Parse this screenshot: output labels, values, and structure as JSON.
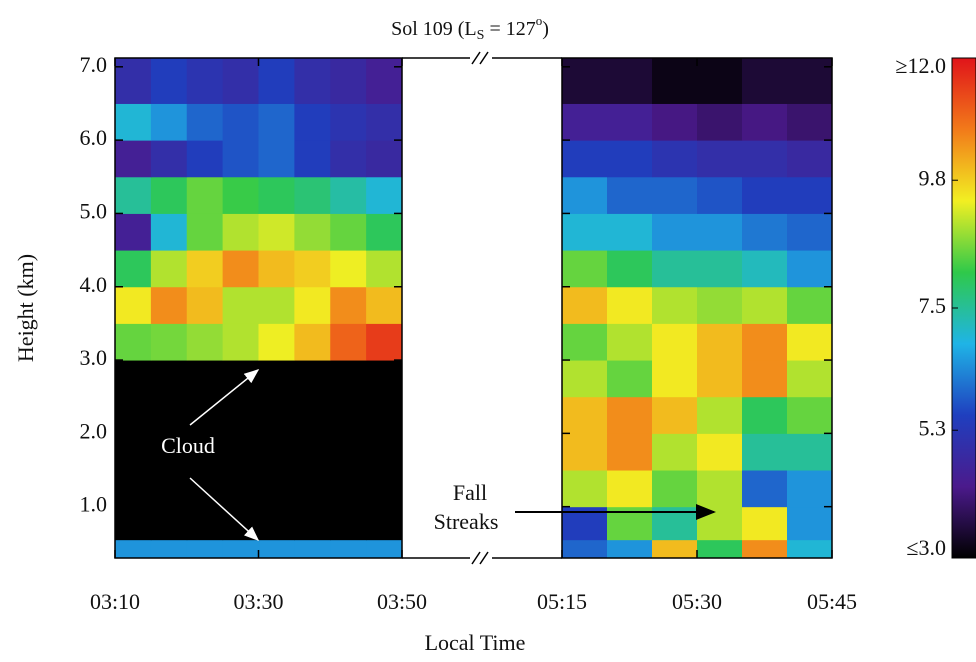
{
  "chart_data": {
    "type": "heatmap",
    "title_parts": [
      "Sol 109 (L",
      "S",
      " = 127",
      "o",
      ")"
    ],
    "xlabel": "Local Time",
    "ylabel": "Height (km)",
    "ylim": [
      0.3,
      7.12
    ],
    "yticks": [
      {
        "value": 1,
        "label": "1.0"
      },
      {
        "value": 2,
        "label": "2.0"
      },
      {
        "value": 3,
        "label": "3.0"
      },
      {
        "value": 4,
        "label": "4.0"
      },
      {
        "value": 5,
        "label": "5.0"
      },
      {
        "value": 6,
        "label": "6.0"
      },
      {
        "value": 7,
        "label": "7.0"
      }
    ],
    "ybins": [
      0.3,
      0.55,
      1.0,
      1.5,
      2.0,
      2.5,
      3.0,
      3.5,
      4.0,
      4.5,
      5.0,
      5.5,
      6.0,
      6.5,
      7.12
    ],
    "panels": [
      {
        "xlim": [
          190,
          230
        ],
        "xbins": [
          190,
          195,
          200,
          205,
          210,
          215,
          220,
          225,
          230
        ],
        "xticks": [
          {
            "value": 190,
            "label": "03:10"
          },
          {
            "value": 210,
            "label": "03:30"
          },
          {
            "value": 230,
            "label": "03:50"
          }
        ],
        "z": [
          [
            6.5,
            6.5,
            6.5,
            6.5,
            6.5,
            6.5,
            6.5,
            6.5
          ],
          [
            3,
            3,
            3,
            3,
            3,
            3,
            3,
            3
          ],
          [
            3,
            3,
            3,
            3,
            3,
            3,
            3,
            3
          ],
          [
            3,
            3,
            3,
            3,
            3,
            3,
            3,
            3
          ],
          [
            3,
            3,
            3,
            3,
            3,
            3,
            3,
            3
          ],
          [
            3,
            3,
            3,
            3,
            3,
            3,
            3,
            3
          ],
          [
            8.5,
            8.6,
            8.8,
            9,
            9.4,
            10,
            11,
            11.5
          ],
          [
            9.5,
            10.5,
            10,
            9,
            9,
            9.5,
            10.5,
            10
          ],
          [
            8,
            9,
            9.8,
            10.5,
            10,
            9.8,
            9.4,
            9
          ],
          [
            4.5,
            7,
            8.5,
            9,
            9.2,
            8.8,
            8.5,
            8
          ],
          [
            7.5,
            8,
            8.5,
            8.2,
            8,
            7.8,
            7.4,
            7
          ],
          [
            4.5,
            5,
            5.5,
            5.8,
            6,
            5.5,
            5,
            4.8
          ],
          [
            7,
            6.5,
            6,
            5.8,
            6,
            5.5,
            5.2,
            5
          ],
          [
            5,
            5.5,
            5.2,
            5,
            5.5,
            5,
            4.8,
            4.5
          ]
        ]
      },
      {
        "xlim": [
          315,
          345
        ],
        "xbins": [
          315,
          320,
          325,
          330,
          335,
          340,
          345
        ],
        "xticks": [
          {
            "value": 315,
            "label": "05:15"
          },
          {
            "value": 330,
            "label": "05:30"
          },
          {
            "value": 345,
            "label": "05:45"
          }
        ],
        "z": [
          [
            6,
            6.5,
            10,
            8,
            10.5,
            7
          ],
          [
            5.5,
            8.5,
            7.5,
            9,
            9.5,
            6.5
          ],
          [
            9,
            9.5,
            8.5,
            9,
            6,
            6.5
          ],
          [
            10,
            10.5,
            9,
            9.5,
            7.5,
            7.5
          ],
          [
            10,
            10.5,
            10,
            9,
            8,
            8.5
          ],
          [
            9,
            8.5,
            9.5,
            10,
            10.5,
            9
          ],
          [
            8.5,
            9,
            9.5,
            10,
            10.5,
            9.5
          ],
          [
            10,
            9.5,
            9,
            8.8,
            9,
            8.5
          ],
          [
            8.5,
            8,
            7.5,
            7.5,
            7.2,
            6.5
          ],
          [
            7,
            7,
            6.5,
            6.5,
            6.2,
            6
          ],
          [
            6.5,
            6,
            6,
            5.8,
            5.5,
            5.5
          ],
          [
            5.5,
            5.5,
            5.2,
            5,
            5,
            4.8
          ],
          [
            4.5,
            4.5,
            4.2,
            4,
            4.2,
            4
          ],
          [
            3.5,
            3.5,
            3.2,
            3.2,
            3.5,
            3.5
          ]
        ]
      }
    ],
    "colorbar": {
      "lim": [
        3,
        12
      ],
      "ticks": [
        {
          "value": 12,
          "label": "≥12.0"
        },
        9.8,
        7.5,
        5.3,
        {
          "value": 3,
          "label": "≤3.0"
        }
      ],
      "colors": [
        "#000000",
        "#4b1a8c",
        "#1f3fbf",
        "#1fb4e6",
        "#2fc94a",
        "#f2ef22",
        "#f27a1a",
        "#e0141a"
      ]
    },
    "annotations": [
      "Cloud",
      "Fall",
      "Streaks"
    ]
  }
}
